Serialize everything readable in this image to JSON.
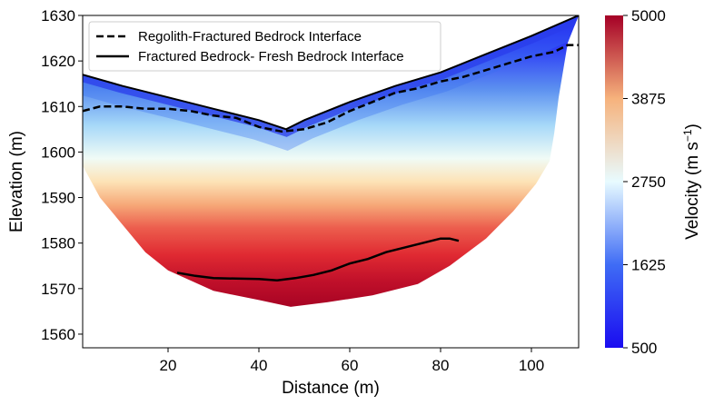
{
  "chart_data": {
    "type": "heatmap",
    "title": "",
    "xlabel": "Distance (m)",
    "ylabel": "Elevation (m)",
    "xlim": [
      1.2,
      110.4
    ],
    "ylim": [
      1557,
      1630
    ],
    "xticks": [
      20,
      40,
      60,
      80,
      100
    ],
    "yticks": [
      1560,
      1570,
      1580,
      1590,
      1600,
      1610,
      1620,
      1630
    ],
    "grid": false,
    "colorbar": {
      "label": "Velocity (m s",
      "label_sup": "−1",
      "label_end": ")",
      "range": [
        500,
        5000
      ],
      "ticks": [
        500,
        1625,
        2750,
        3875,
        5000
      ],
      "colors": [
        "#1a0cf0",
        "#3f6cf5",
        "#e8fbff",
        "#f6b27c",
        "#a50026"
      ]
    },
    "surface": [
      [
        1.2,
        1617
      ],
      [
        10,
        1614.5
      ],
      [
        20,
        1612
      ],
      [
        30,
        1609.5
      ],
      [
        40,
        1607
      ],
      [
        46,
        1605
      ],
      [
        50,
        1607
      ],
      [
        60,
        1611
      ],
      [
        70,
        1614.5
      ],
      [
        80,
        1617.5
      ],
      [
        90,
        1621.5
      ],
      [
        100,
        1625.5
      ],
      [
        110.4,
        1630
      ]
    ],
    "bottom": [
      [
        1.2,
        1597
      ],
      [
        5,
        1590
      ],
      [
        10,
        1584
      ],
      [
        15,
        1578
      ],
      [
        20,
        1574
      ],
      [
        30,
        1569.5
      ],
      [
        40,
        1567.5
      ],
      [
        47,
        1566
      ],
      [
        55,
        1567
      ],
      [
        65,
        1568.5
      ],
      [
        75,
        1571
      ],
      [
        82,
        1575
      ],
      [
        90,
        1581
      ],
      [
        96,
        1587
      ],
      [
        101,
        1593
      ],
      [
        104,
        1598
      ],
      [
        105,
        1604
      ],
      [
        106,
        1612
      ],
      [
        108,
        1624
      ],
      [
        110.4,
        1630
      ]
    ],
    "series": [
      {
        "name": "Regolith-Fractured Bedrock Interface",
        "style": "dashed",
        "x": [
          1.2,
          5,
          10,
          15,
          20,
          25,
          30,
          35,
          40,
          45,
          50,
          55,
          60,
          65,
          70,
          75,
          80,
          85,
          90,
          95,
          100,
          105,
          108,
          110.4
        ],
        "y": [
          1609,
          1610,
          1610,
          1609.5,
          1609.5,
          1609,
          1608,
          1607.5,
          1605.5,
          1604.5,
          1605,
          1606.5,
          1609,
          1611,
          1613,
          1614,
          1615.5,
          1616.5,
          1618,
          1619.5,
          1621,
          1622,
          1623.5,
          1623.5
        ]
      },
      {
        "name": "Fractured Bedrock- Fresh Bedrock Interface",
        "style": "solid",
        "x": [
          22,
          26,
          30,
          35,
          40,
          44,
          48,
          52,
          56,
          60,
          64,
          68,
          72,
          76,
          80,
          82,
          84
        ],
        "y": [
          1573.5,
          1572.8,
          1572.3,
          1572.2,
          1572.1,
          1571.8,
          1572.3,
          1573,
          1574,
          1575.5,
          1576.5,
          1578,
          1579,
          1580,
          1581,
          1581,
          1580.5
        ]
      }
    ],
    "legend_position": "top-left"
  }
}
